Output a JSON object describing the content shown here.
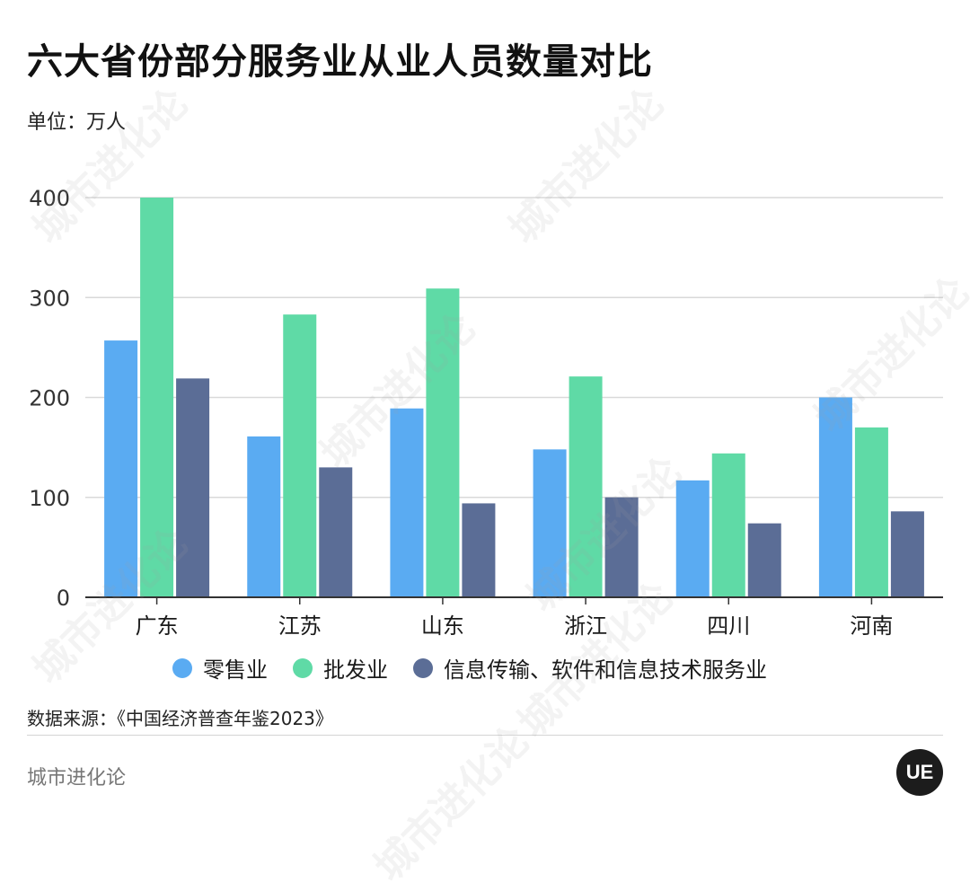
{
  "title": "六大省份部分服务业从业人员数量对比",
  "unit_label": "单位：万人",
  "source": "数据来源：《中国经济普查年鉴2023》",
  "brand": "城市进化论",
  "logo_text": "UE",
  "watermark": "城市进化论",
  "chart_data": {
    "type": "bar",
    "categories": [
      "广东",
      "江苏",
      "山东",
      "浙江",
      "四川",
      "河南"
    ],
    "series": [
      {
        "name": "零售业",
        "color": "#5aabf2",
        "values": [
          257,
          161,
          189,
          148,
          117,
          200
        ]
      },
      {
        "name": "批发业",
        "color": "#5fdaa6",
        "values": [
          400,
          283,
          309,
          221,
          144,
          170
        ]
      },
      {
        "name": "信息传输、软件和信息技术服务业",
        "color": "#5b6d96",
        "values": [
          219,
          130,
          94,
          100,
          74,
          86
        ]
      }
    ],
    "ylim": [
      0,
      400
    ],
    "yticks": [
      0,
      100,
      200,
      300,
      400
    ],
    "grid": true,
    "legend_position": "bottom"
  }
}
